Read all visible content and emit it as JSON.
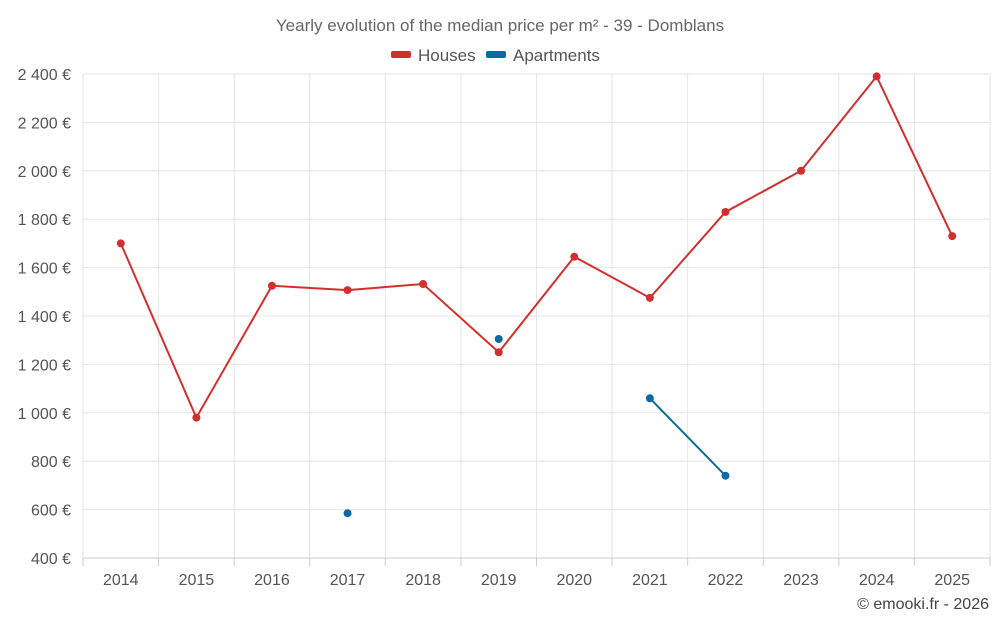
{
  "chart_data": {
    "type": "line",
    "title": "Yearly evolution of the median price per m² - 39 - Domblans",
    "categories": [
      "2014",
      "2015",
      "2016",
      "2017",
      "2018",
      "2019",
      "2020",
      "2021",
      "2022",
      "2023",
      "2024",
      "2025"
    ],
    "y_ticks": [
      "400 €",
      "600 €",
      "800 €",
      "1 000 €",
      "1 200 €",
      "1 400 €",
      "1 600 €",
      "1 800 €",
      "2 000 €",
      "2 200 €",
      "2 400 €"
    ],
    "ylim": [
      400,
      2400
    ],
    "y_step": 200,
    "grid": true,
    "legend_position": "top-center",
    "series": [
      {
        "name": "Houses",
        "color": "#d32f2f",
        "values": [
          1700,
          980,
          1525,
          1507,
          1532,
          1250,
          1645,
          1475,
          1830,
          2000,
          2390,
          1730
        ]
      },
      {
        "name": "Apartments",
        "color": "#0a6aa1",
        "values": [
          null,
          null,
          null,
          585,
          null,
          1305,
          null,
          1060,
          740,
          null,
          null,
          null
        ]
      }
    ]
  },
  "credit": "© emooki.fr - 2026"
}
